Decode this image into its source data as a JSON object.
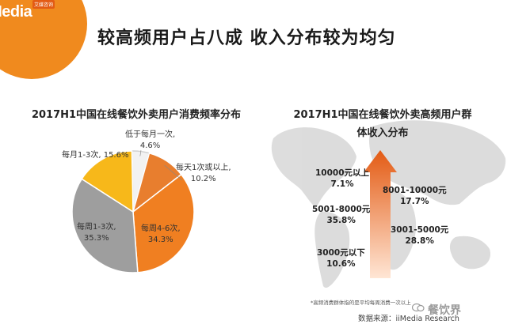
{
  "brand": {
    "logo_text": "iiMedia",
    "logo_tag": "艾媒咨询"
  },
  "title": "较高频用户占八成 收入分布较为均匀",
  "colors": {
    "accent": "#f08a1e",
    "pie": [
      "#f2f2f2",
      "#e87e2e",
      "#f07f21",
      "#9e9e9e",
      "#f7b81a"
    ],
    "map": "#d9d9d9",
    "arrow_top": "#e35b14",
    "arrow_bottom": "#ffe6d5"
  },
  "chart_data": [
    {
      "type": "pie",
      "title": "2017H1中国在线餐饮外卖用户消费频率分布",
      "slices": [
        {
          "label": "低于每月一次,",
          "value": 4.6,
          "value_text": "4.6%"
        },
        {
          "label": "每天1次或以上,",
          "value": 10.2,
          "value_text": "10.2%"
        },
        {
          "label": "每周4-6次,",
          "value": 34.3,
          "value_text": "34.3%"
        },
        {
          "label": "每周1-3次,",
          "value": 35.3,
          "value_text": "35.3%"
        },
        {
          "label": "每月1-3次,",
          "value": 15.6,
          "value_text": "15.6%"
        }
      ]
    },
    {
      "type": "table",
      "title_line1": "2017H1中国在线餐饮外卖高频用户群",
      "title_line2": "体收入分布",
      "categories": [
        "3000元以下",
        "3001-5000元",
        "5001-8000元",
        "8001-10000元",
        "10000元以上"
      ],
      "values": [
        10.6,
        28.8,
        35.8,
        17.7,
        7.1
      ],
      "value_texts": [
        "10.6%",
        "28.8%",
        "35.8%",
        "17.7%",
        "7.1%"
      ]
    }
  ],
  "footnote": "*高频消费群体指的是平均每周消费一次以上",
  "source": "数据来源：iiMedia Research",
  "watermark": "餐饮界"
}
